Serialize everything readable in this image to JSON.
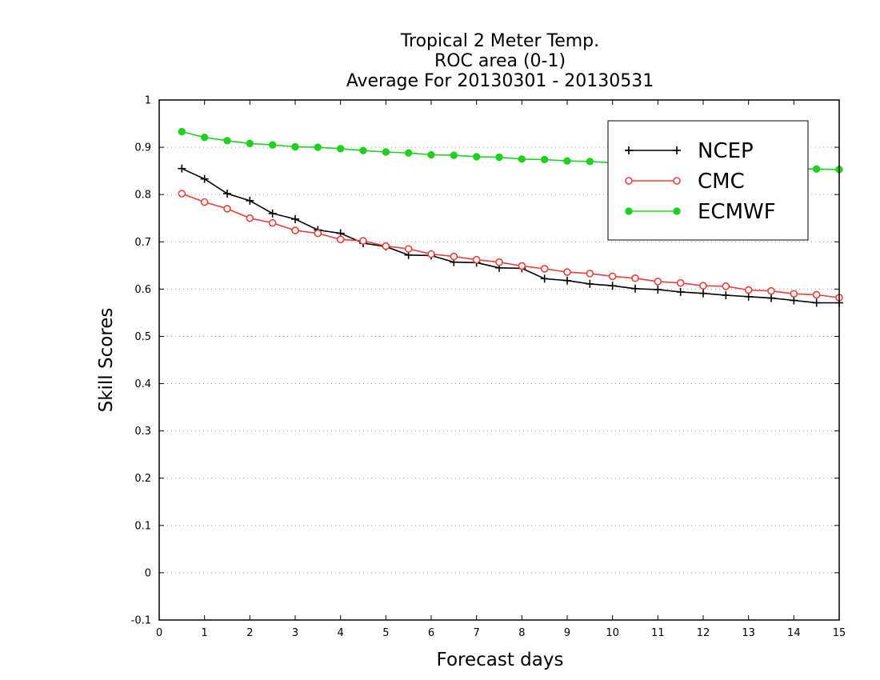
{
  "chart_data": {
    "type": "line",
    "title": [
      "Tropical 2 Meter Temp.",
      "ROC area (0-1)",
      "Average For 20130301 - 20130531"
    ],
    "xlabel": "Forecast days",
    "ylabel": "Skill Scores",
    "xlim": [
      0,
      15
    ],
    "ylim": [
      -0.1,
      1
    ],
    "xticks": [
      "0",
      "1",
      "2",
      "3",
      "4",
      "5",
      "6",
      "7",
      "8",
      "9",
      "10",
      "11",
      "12",
      "13",
      "14",
      "15"
    ],
    "yticks": [
      "-0.1",
      "0",
      "0.1",
      "0.2",
      "0.3",
      "0.4",
      "0.5",
      "0.6",
      "0.7",
      "0.8",
      "0.9",
      "1"
    ],
    "grid": true,
    "legend_position": "top-right",
    "x": [
      0.5,
      1,
      1.5,
      2,
      2.5,
      3,
      3.5,
      4,
      4.5,
      5,
      5.5,
      6,
      6.5,
      7,
      7.5,
      8,
      8.5,
      9,
      9.5,
      10,
      10.5,
      11,
      11.5,
      12,
      12.5,
      13,
      13.5,
      14,
      14.5,
      15
    ],
    "series": [
      {
        "name": "NCEP",
        "color": "#000000",
        "marker": "plus",
        "values": [
          0.855,
          0.833,
          0.802,
          0.787,
          0.76,
          0.748,
          0.725,
          0.718,
          0.697,
          0.69,
          0.672,
          0.671,
          0.657,
          0.656,
          0.645,
          0.644,
          0.622,
          0.618,
          0.611,
          0.607,
          0.601,
          0.599,
          0.594,
          0.591,
          0.587,
          0.584,
          0.581,
          0.576,
          0.571,
          0.571
        ]
      },
      {
        "name": "CMC",
        "color": "#e8403c",
        "marker": "open-circle",
        "values": [
          0.802,
          0.784,
          0.77,
          0.75,
          0.74,
          0.724,
          0.718,
          0.705,
          0.702,
          0.691,
          0.685,
          0.674,
          0.669,
          0.662,
          0.657,
          0.649,
          0.643,
          0.636,
          0.633,
          0.627,
          0.623,
          0.616,
          0.613,
          0.607,
          0.606,
          0.598,
          0.596,
          0.59,
          0.588,
          0.582
        ]
      },
      {
        "name": "ECMWF",
        "color": "#20d020",
        "marker": "filled-circle",
        "values": [
          0.933,
          0.921,
          0.914,
          0.908,
          0.905,
          0.901,
          0.9,
          0.897,
          0.893,
          0.89,
          0.888,
          0.884,
          0.883,
          0.88,
          0.879,
          0.875,
          0.874,
          0.871,
          0.87,
          0.867,
          0.865,
          0.862,
          0.861,
          0.86,
          0.858,
          0.857,
          0.856,
          0.855,
          0.854,
          0.853
        ]
      }
    ]
  }
}
